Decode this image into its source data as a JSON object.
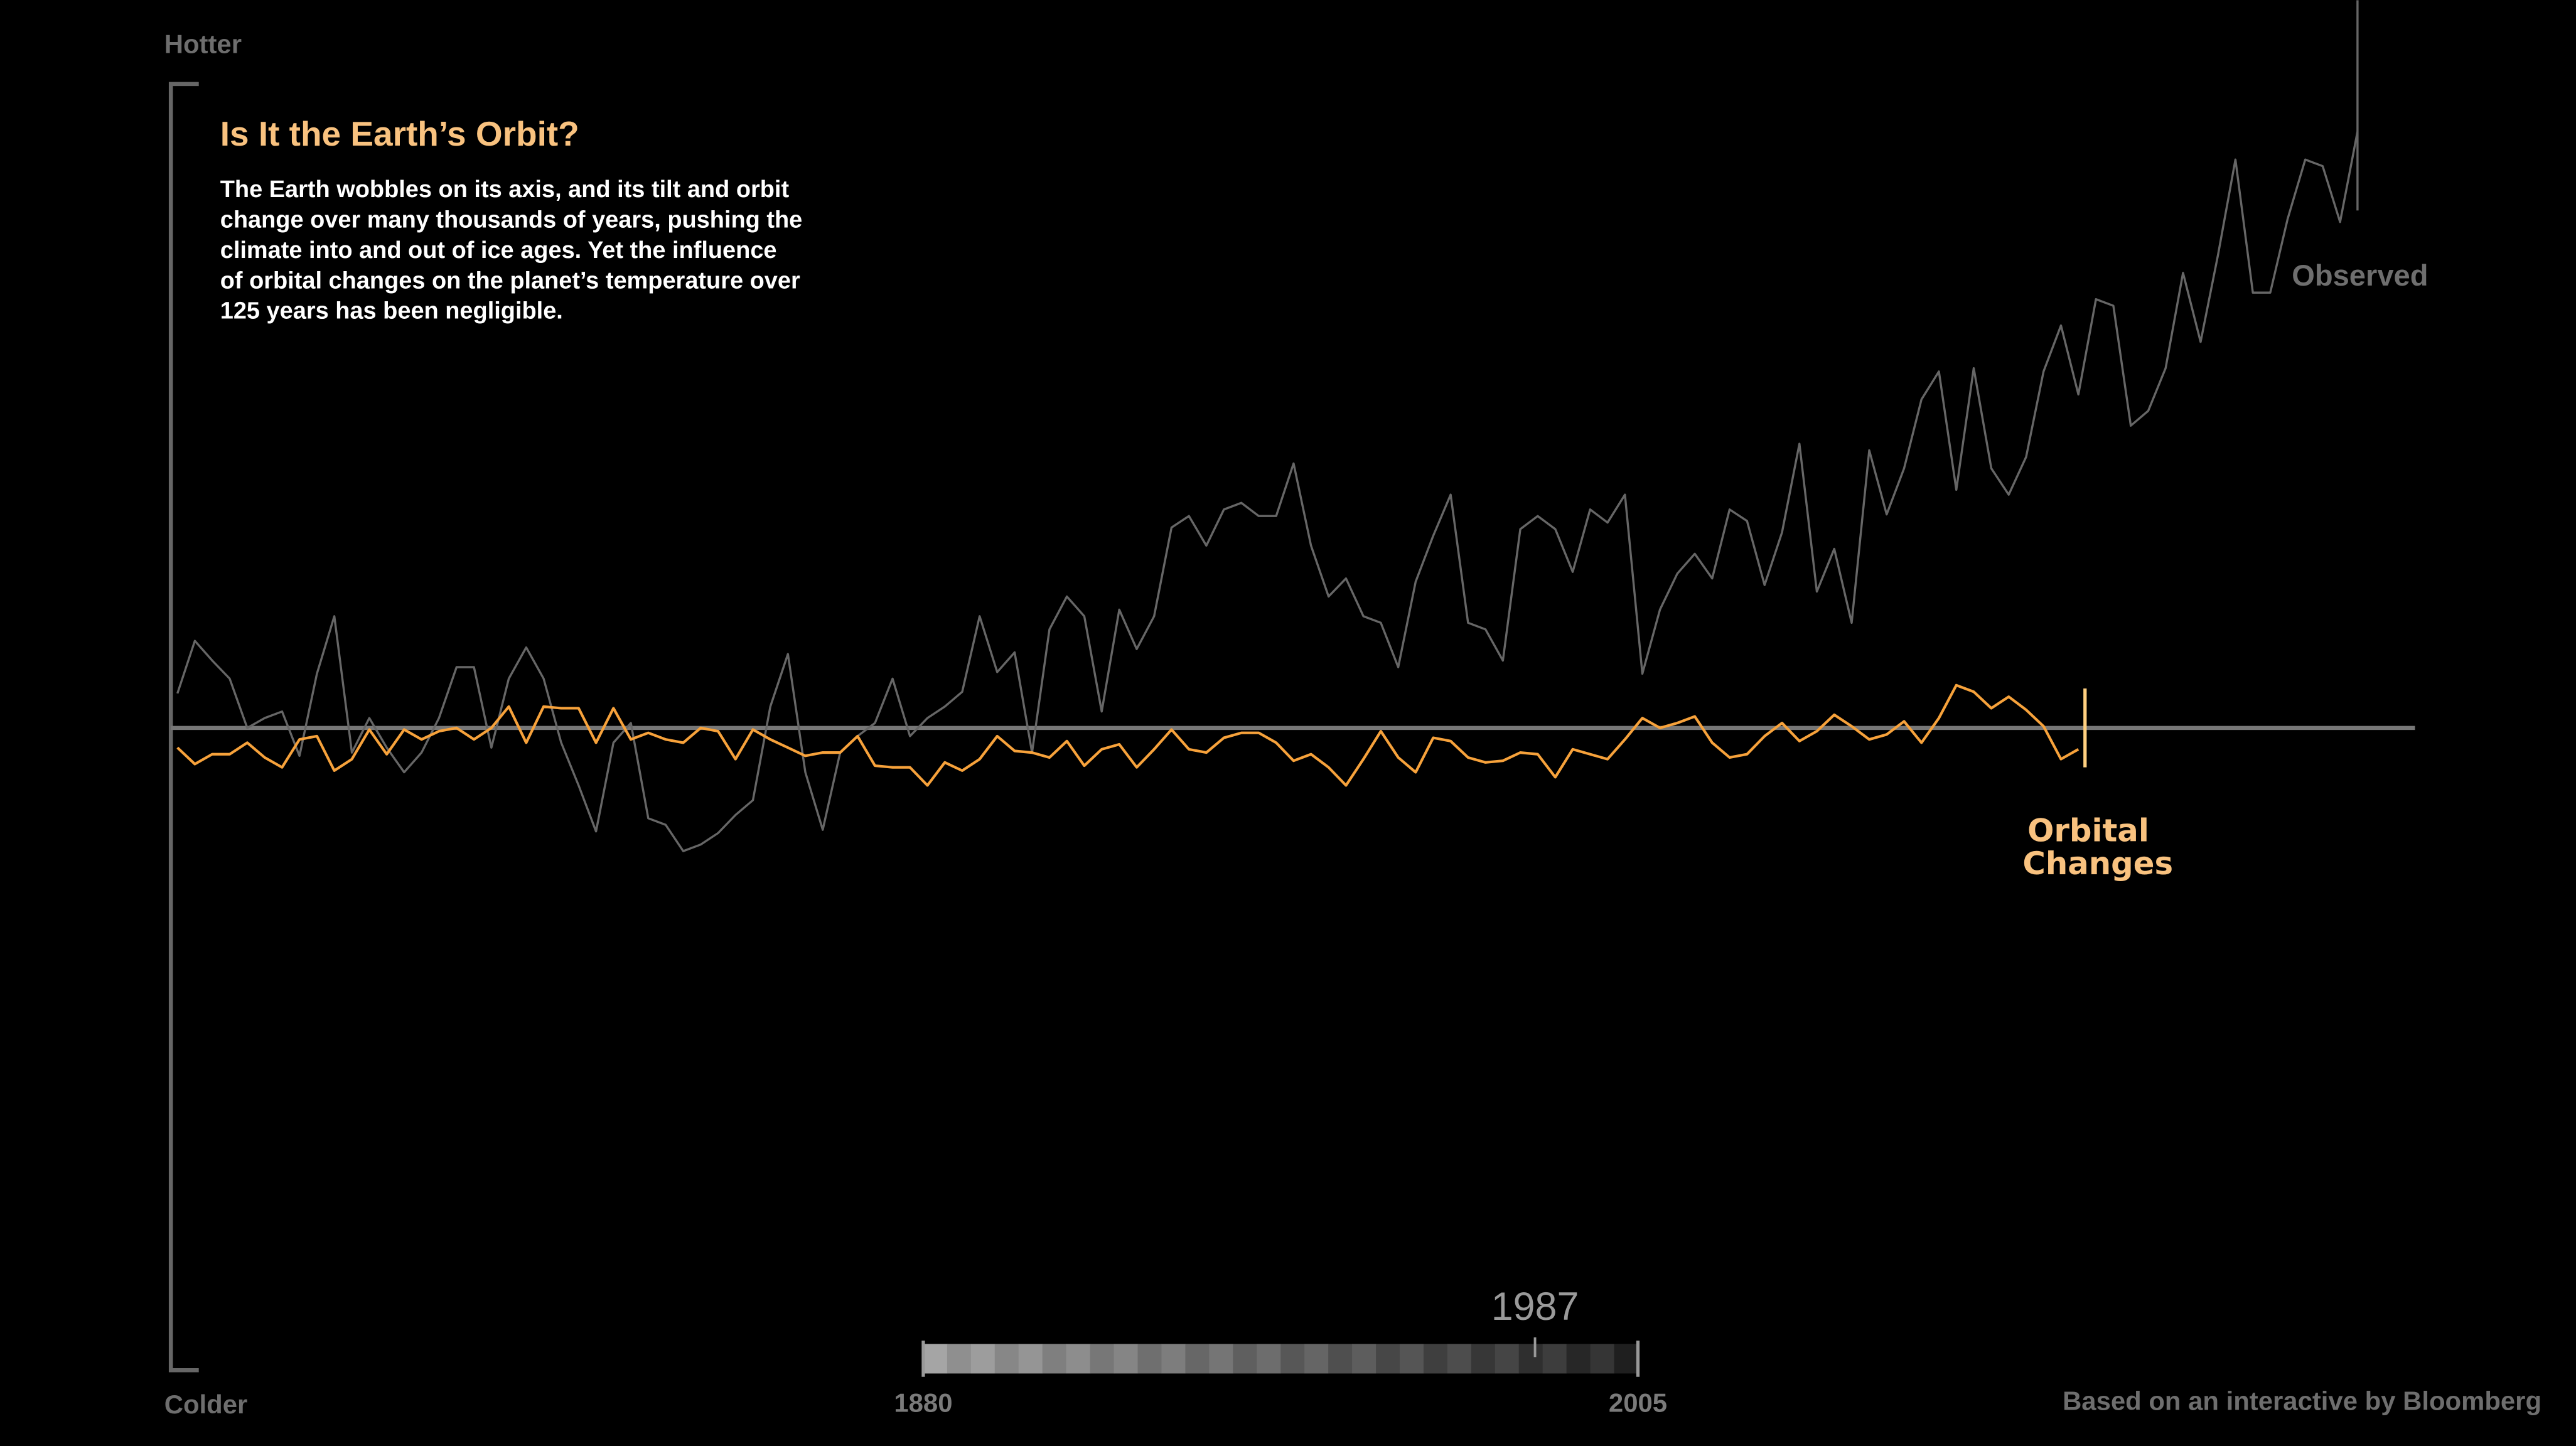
{
  "chart_data": {
    "type": "line",
    "title": "Is It the Earth’s Orbit?",
    "body": [
      "The Earth wobbles on its axis, and its tilt and orbit",
      "change over many thousands of years, pushing the",
      "climate into and out of ice ages.  Yet the influence",
      "of orbital changes on the planet’s temperature over",
      "125 years has been negligible."
    ],
    "y_top_label": "Hotter",
    "y_bottom_label": "Colder",
    "xlim": [
      1880,
      2005
    ],
    "ylim": [
      -392,
      393
    ],
    "yticks": [
      0
    ],
    "x": [
      1880,
      1881,
      1882,
      1883,
      1884,
      1885,
      1886,
      1887,
      1888,
      1889,
      1890,
      1891,
      1892,
      1893,
      1894,
      1895,
      1896,
      1897,
      1898,
      1899,
      1900,
      1901,
      1902,
      1903,
      1904,
      1905,
      1906,
      1907,
      1908,
      1909,
      1910,
      1911,
      1912,
      1913,
      1914,
      1915,
      1916,
      1917,
      1918,
      1919,
      1920,
      1921,
      1922,
      1923,
      1924,
      1925,
      1926,
      1927,
      1928,
      1929,
      1930,
      1931,
      1932,
      1933,
      1934,
      1935,
      1936,
      1937,
      1938,
      1939,
      1940,
      1941,
      1942,
      1943,
      1944,
      1945,
      1946,
      1947,
      1948,
      1949,
      1950,
      1951,
      1952,
      1953,
      1954,
      1955,
      1956,
      1957,
      1958,
      1959,
      1960,
      1961,
      1962,
      1963,
      1964,
      1965,
      1966,
      1967,
      1968,
      1969,
      1970,
      1971,
      1972,
      1973,
      1974,
      1975,
      1976,
      1977,
      1978,
      1979,
      1980,
      1981,
      1982,
      1983,
      1984,
      1985,
      1986,
      1987,
      1988,
      1989,
      1990,
      1991,
      1992,
      1993,
      1994,
      1995,
      1996,
      1997,
      1998,
      1999,
      2000,
      2001,
      2002,
      2003,
      2004,
      2005
    ],
    "series": [
      {
        "name": "Observed",
        "color": "#666666",
        "values": [
          21,
          53,
          41,
          30,
          0,
          6,
          10,
          -17,
          33,
          68,
          -15,
          6,
          -12,
          -27,
          -15,
          6,
          37,
          37,
          -12,
          30,
          49,
          30,
          -9,
          -35,
          -63,
          -9,
          3,
          -55,
          -59,
          -75,
          -71,
          -64,
          -53,
          -44,
          13,
          45,
          -27,
          -62,
          -15,
          -5,
          3,
          30,
          -5,
          6,
          13,
          22,
          68,
          34,
          46,
          -15,
          60,
          80,
          68,
          10,
          72,
          48,
          68,
          122,
          129,
          111,
          133,
          137,
          129,
          129,
          161,
          111,
          80,
          91,
          68,
          64,
          37,
          89,
          117,
          142,
          64,
          60,
          41,
          121,
          129,
          121,
          95,
          133,
          125,
          142,
          33,
          72,
          94,
          106,
          91,
          133,
          126,
          87,
          119,
          173,
          83,
          109,
          64,
          169,
          130,
          158,
          200,
          217,
          145,
          219,
          158,
          142,
          165,
          217,
          245,
          203,
          261,
          257,
          184,
          193,
          219,
          277,
          235,
          288,
          346,
          265,
          265,
          310,
          346,
          342,
          308,
          363
        ]
      },
      {
        "name": "Orbital Changes",
        "color": "#f7a23b",
        "values": [
          -12,
          -22,
          -16,
          -16,
          -9,
          -18,
          -24,
          -7,
          -5,
          -26,
          -19,
          -1,
          -16,
          -1,
          -7,
          -2,
          0,
          -7,
          0,
          13,
          -9,
          13,
          12,
          12,
          -9,
          12,
          -7,
          -3,
          -7,
          -9,
          0,
          -2,
          -19,
          -1,
          -7,
          -12,
          -17,
          -15,
          -15,
          -5,
          -23,
          -24,
          -24,
          -35,
          -21,
          -26,
          -19,
          -5,
          -14,
          -15,
          -18,
          -8,
          -23,
          -13,
          -10,
          -24,
          -13,
          -1,
          -13,
          -15,
          -6,
          -3,
          -3,
          -9,
          -20,
          -16,
          -24,
          -35,
          -19,
          -2,
          -18,
          -27,
          -6,
          -8,
          -18,
          -21,
          -20,
          -15,
          -16,
          -30,
          -13,
          -16,
          -19,
          -7,
          6,
          0,
          3,
          7,
          -9,
          -18,
          -16,
          -5,
          3,
          -8,
          -2,
          8,
          1,
          -7,
          -4,
          4,
          -9,
          6,
          26,
          22,
          12,
          19,
          11,
          1,
          -19,
          -13,
          null,
          null,
          null,
          null,
          null,
          null,
          null,
          null,
          null,
          null,
          null,
          null,
          null,
          null,
          null,
          null
        ]
      }
    ],
    "slider": {
      "min": 1880,
      "max": 2005,
      "value": 1987
    },
    "credit": "Based on an interactive by Bloomberg"
  }
}
